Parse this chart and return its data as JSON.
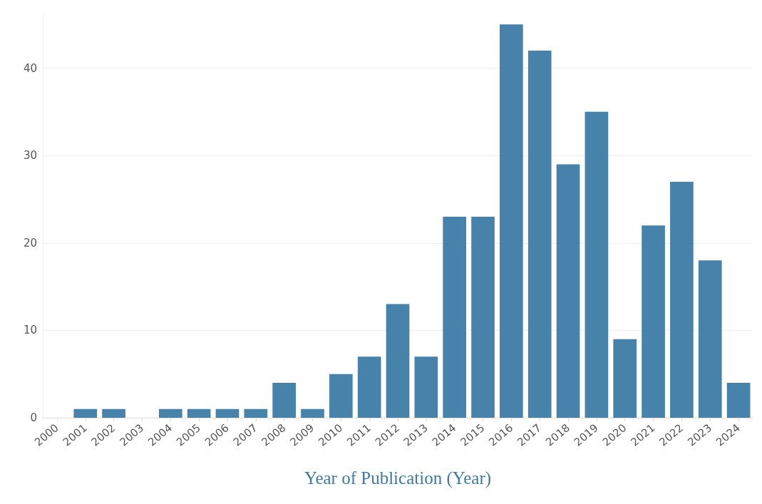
{
  "chart_data": {
    "type": "bar",
    "xlabel": "Year of Publication (Year)",
    "categories": [
      "2000",
      "2001",
      "2002",
      "2003",
      "2004",
      "2005",
      "2006",
      "2007",
      "2008",
      "2009",
      "2010",
      "2011",
      "2012",
      "2013",
      "2014",
      "2015",
      "2016",
      "2017",
      "2018",
      "2019",
      "2020",
      "2021",
      "2022",
      "2023",
      "2024"
    ],
    "values": [
      0,
      1,
      1,
      0,
      1,
      1,
      1,
      1,
      4,
      1,
      5,
      7,
      13,
      7,
      23,
      23,
      45,
      42,
      29,
      35,
      9,
      22,
      27,
      18,
      4
    ],
    "color": "#4682a9",
    "ylim": [
      0,
      46
    ],
    "yticks": [
      0,
      10,
      20,
      30,
      40
    ],
    "grid": "y"
  }
}
